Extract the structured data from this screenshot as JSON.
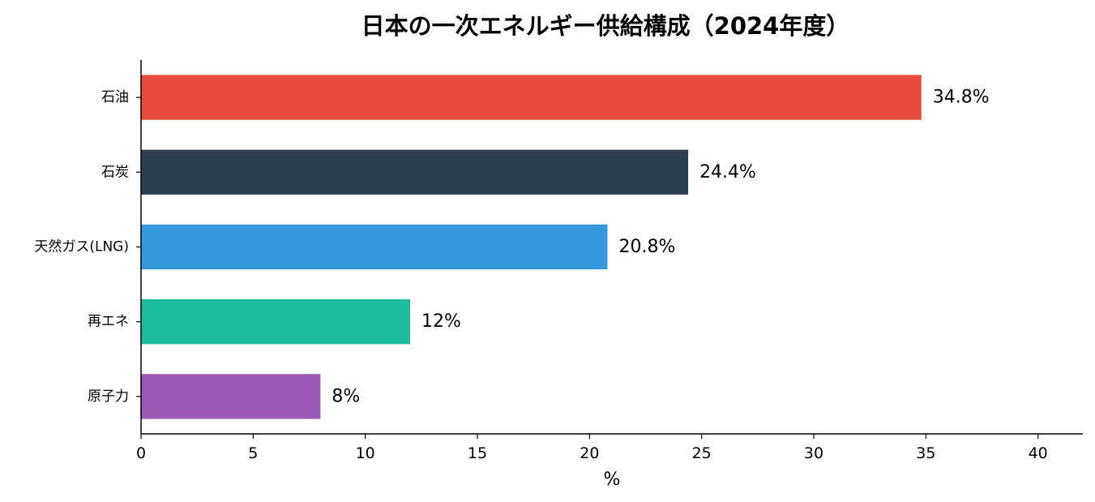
{
  "chart_data": {
    "type": "bar",
    "orientation": "horizontal",
    "title": "日本の一次エネルギー供給構成（2024年度）",
    "xlabel": "%",
    "ylabel": "",
    "xlim": [
      0,
      42
    ],
    "xticks": [
      0,
      5,
      10,
      15,
      20,
      25,
      30,
      35,
      40
    ],
    "grid": false,
    "categories": [
      "石油",
      "石炭",
      "天然ガス(LNG)",
      "再エネ",
      "原子力"
    ],
    "values": [
      34.8,
      24.4,
      20.8,
      12,
      8
    ],
    "value_labels": [
      "34.8%",
      "24.4%",
      "20.8%",
      "12%",
      "8%"
    ],
    "colors": [
      "#e74c3c",
      "#2c3e50",
      "#3498db",
      "#1abc9c",
      "#9b59b6"
    ]
  }
}
